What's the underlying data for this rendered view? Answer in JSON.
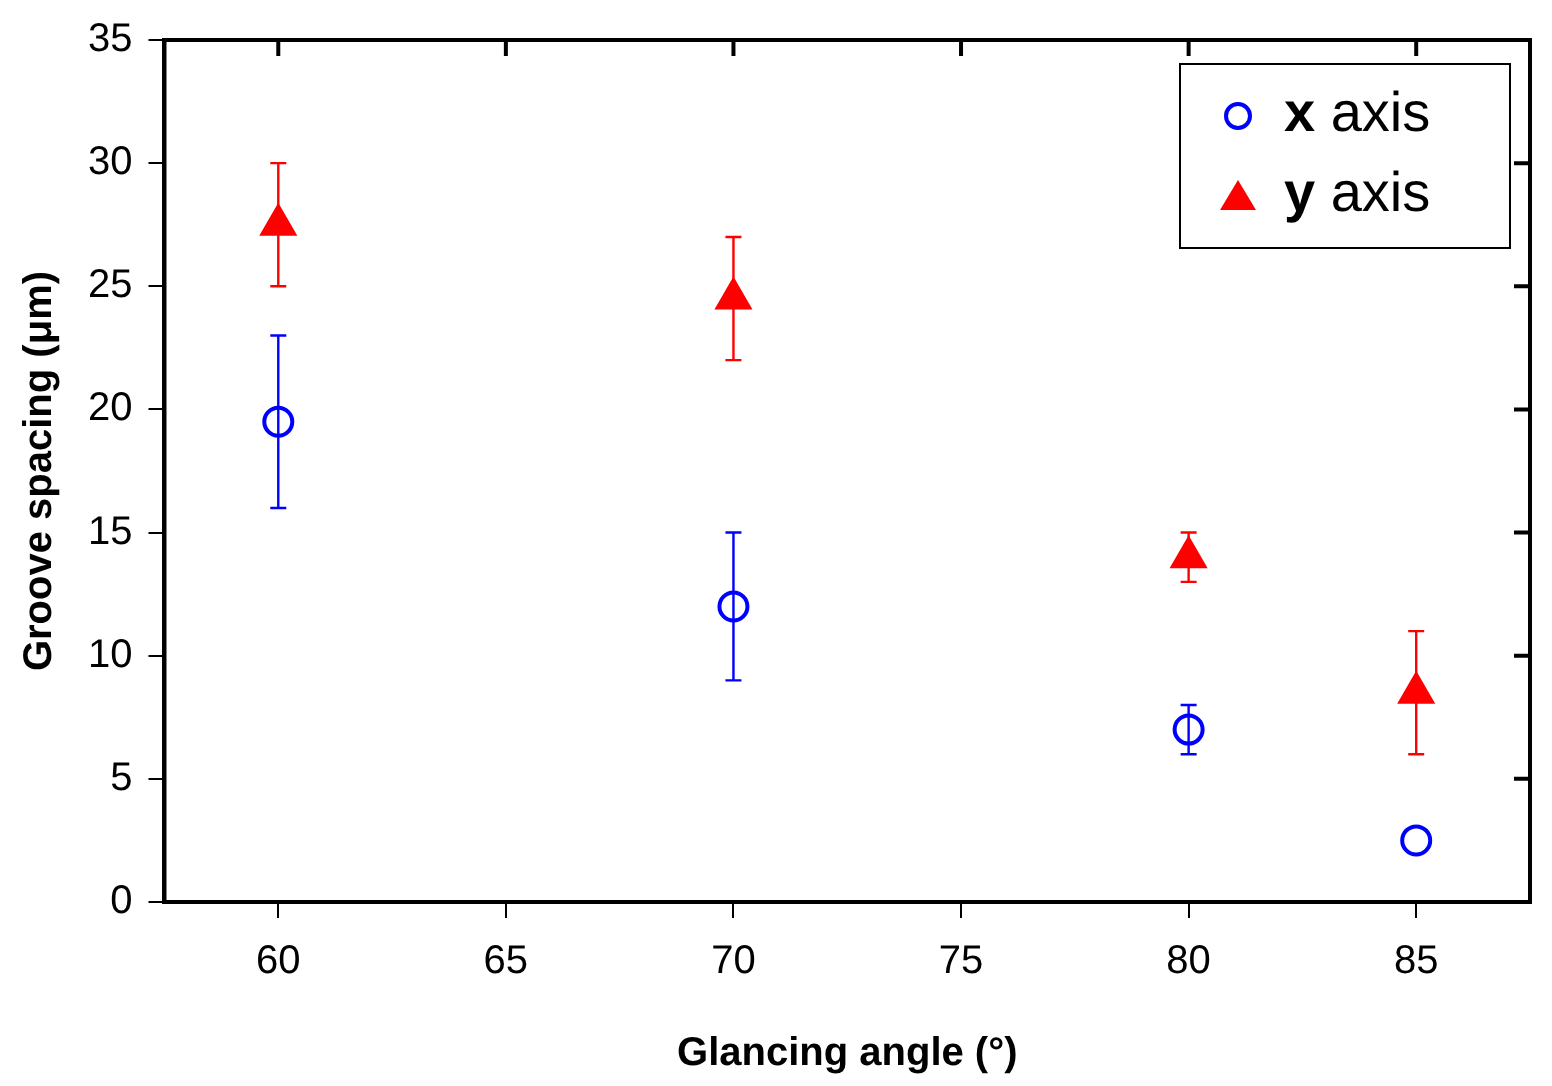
{
  "chart_data": {
    "type": "scatter",
    "xlabel": "Glancing angle (°)",
    "ylabel": "Groove spacing (μm)",
    "x": [
      60,
      70,
      80,
      85
    ],
    "series": [
      {
        "name": "x axis",
        "color": "#0000ff",
        "marker": "circle",
        "values": [
          19.5,
          12,
          7,
          2.5
        ],
        "errors": [
          3.5,
          3,
          1,
          null
        ]
      },
      {
        "name": "y axis",
        "color": "#ff0000",
        "marker": "triangle",
        "values": [
          27.5,
          24.5,
          14,
          8.5
        ],
        "errors": [
          2.5,
          2.5,
          1,
          2.5
        ]
      }
    ],
    "xlim": [
      57.5,
      87.5
    ],
    "xticks": [
      60,
      65,
      70,
      75,
      80,
      85
    ],
    "ylim": [
      0,
      35
    ],
    "yticks": [
      0,
      5,
      10,
      15,
      20,
      25,
      30,
      35
    ],
    "grid": false,
    "legend": "top right"
  }
}
